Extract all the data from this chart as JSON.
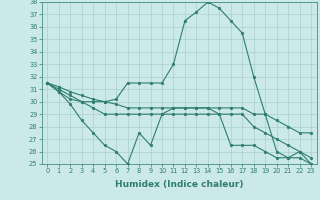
{
  "x": [
    0,
    1,
    2,
    3,
    4,
    5,
    6,
    7,
    8,
    9,
    10,
    11,
    12,
    13,
    14,
    15,
    16,
    17,
    18,
    19,
    20,
    21,
    22,
    23
  ],
  "line1": [
    31.5,
    30.8,
    30.2,
    30.0,
    30.0,
    30.0,
    30.2,
    31.5,
    31.5,
    31.5,
    31.5,
    33.0,
    36.5,
    37.2,
    38.0,
    37.5,
    36.5,
    35.5,
    32.0,
    29.0,
    26.0,
    25.5,
    25.5,
    25.0
  ],
  "line2": [
    31.5,
    30.8,
    29.8,
    28.5,
    27.5,
    26.5,
    26.0,
    25.0,
    27.5,
    26.5,
    29.0,
    29.5,
    29.5,
    29.5,
    29.5,
    29.0,
    26.5,
    26.5,
    26.5,
    26.0,
    25.5,
    25.5,
    26.0,
    25.0
  ],
  "line3": [
    31.5,
    31.0,
    30.5,
    30.0,
    29.5,
    29.0,
    29.0,
    29.0,
    29.0,
    29.0,
    29.0,
    29.0,
    29.0,
    29.0,
    29.0,
    29.0,
    29.0,
    29.0,
    28.0,
    27.5,
    27.0,
    26.5,
    26.0,
    25.5
  ],
  "line4": [
    31.5,
    31.2,
    30.8,
    30.5,
    30.2,
    30.0,
    29.8,
    29.5,
    29.5,
    29.5,
    29.5,
    29.5,
    29.5,
    29.5,
    29.5,
    29.5,
    29.5,
    29.5,
    29.0,
    29.0,
    28.5,
    28.0,
    27.5,
    27.5
  ],
  "ylim": [
    25,
    38
  ],
  "yticks": [
    25,
    26,
    27,
    28,
    29,
    30,
    31,
    32,
    33,
    34,
    35,
    36,
    37,
    38
  ],
  "xticks": [
    0,
    1,
    2,
    3,
    4,
    5,
    6,
    7,
    8,
    9,
    10,
    11,
    12,
    13,
    14,
    15,
    16,
    17,
    18,
    19,
    20,
    21,
    22,
    23
  ],
  "xlabel": "Humidex (Indice chaleur)",
  "line_color": "#2e7d6e",
  "bg_color": "#cce9e9",
  "grid_color": "#aacece",
  "markersize": 2.0,
  "linewidth": 0.8
}
